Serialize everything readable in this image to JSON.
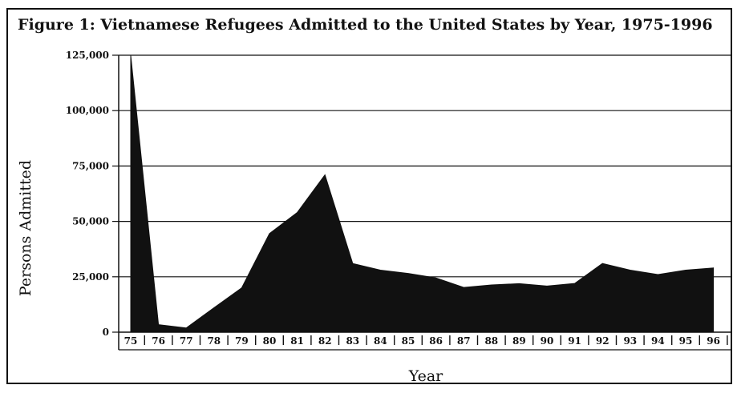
{
  "title": "Figure 1: Vietnamese Refugees Admitted to the United States by Year, 1975-1996",
  "chart_data": {
    "type": "area",
    "title": "Figure 1: Vietnamese Refugees Admitted to the United States by Year, 1975-1996",
    "xlabel": "Year",
    "ylabel": "Persons Admitted",
    "categories": [
      "75",
      "76",
      "77",
      "78",
      "79",
      "80",
      "81",
      "82",
      "83",
      "84",
      "85",
      "86",
      "87",
      "88",
      "89",
      "90",
      "91",
      "92",
      "93",
      "94",
      "95",
      "96"
    ],
    "series": [
      {
        "values": [
          125000,
          3400,
          1900,
          11000,
          20000,
          44500,
          54000,
          71000,
          31000,
          28000,
          26500,
          24500,
          20200,
          21300,
          21900,
          20800,
          22000,
          31000,
          28000,
          26000,
          28000,
          29000
        ]
      }
    ],
    "y_ticks": [
      0,
      25000,
      50000,
      75000,
      100000,
      125000
    ],
    "y_tick_labels": [
      "0",
      "25,000",
      "50,000",
      "75,000",
      "100,000",
      "125,000"
    ],
    "ylim": [
      0,
      125000
    ],
    "grid": true,
    "fill_color": "#111111"
  }
}
